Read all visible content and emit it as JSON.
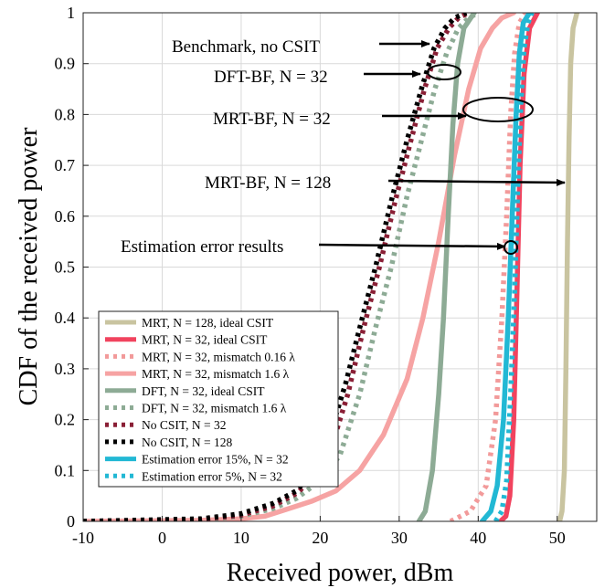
{
  "chart_data": {
    "type": "line",
    "xlabel": "Received power, dBm",
    "ylabel": "CDF of the received power",
    "xlim": [
      -10,
      55
    ],
    "ylim": [
      0,
      1
    ],
    "xticks": [
      "-10",
      "0",
      "10",
      "20",
      "30",
      "40",
      "50"
    ],
    "yticks": [
      "0",
      "0.1",
      "0.2",
      "0.3",
      "0.4",
      "0.5",
      "0.6",
      "0.7",
      "0.8",
      "0.9",
      "1"
    ],
    "grid": true,
    "legend_position": "bottom-left",
    "series": [
      {
        "name": "MRT, N = 128, ideal CSIT",
        "color": "#c9c4a0",
        "style": "solid",
        "points": [
          [
            50.3,
            0
          ],
          [
            50.6,
            0.02
          ],
          [
            50.9,
            0.1
          ],
          [
            51.1,
            0.3
          ],
          [
            51.3,
            0.55
          ],
          [
            51.5,
            0.75
          ],
          [
            51.7,
            0.9
          ],
          [
            52.0,
            0.97
          ],
          [
            52.5,
            1
          ]
        ]
      },
      {
        "name": "MRT, N = 32, ideal CSIT",
        "color": "#f1435e",
        "style": "solid",
        "points": [
          [
            42.8,
            0
          ],
          [
            43.5,
            0.01
          ],
          [
            44.0,
            0.05
          ],
          [
            44.5,
            0.2
          ],
          [
            44.9,
            0.45
          ],
          [
            45.3,
            0.7
          ],
          [
            45.8,
            0.88
          ],
          [
            46.5,
            0.97
          ],
          [
            47.5,
            1
          ]
        ]
      },
      {
        "name": "MRT, N = 32, mismatch 0.16 λ",
        "color": "#f29a9a",
        "style": "dotted",
        "points": [
          [
            36.5,
            0
          ],
          [
            39.0,
            0.02
          ],
          [
            41.0,
            0.07
          ],
          [
            42.2,
            0.2
          ],
          [
            43.0,
            0.4
          ],
          [
            43.6,
            0.6
          ],
          [
            44.1,
            0.8
          ],
          [
            44.6,
            0.92
          ],
          [
            45.2,
            0.98
          ],
          [
            46.0,
            1
          ]
        ]
      },
      {
        "name": "MRT, N = 32, mismatch 1.6 λ",
        "color": "#f6a3a3",
        "style": "solid",
        "points": [
          [
            -10,
            0
          ],
          [
            5,
            0.002
          ],
          [
            10,
            0.005
          ],
          [
            13,
            0.01
          ],
          [
            16,
            0.025
          ],
          [
            19,
            0.04
          ],
          [
            22,
            0.06
          ],
          [
            25,
            0.1
          ],
          [
            28,
            0.17
          ],
          [
            31,
            0.28
          ],
          [
            33,
            0.4
          ],
          [
            35,
            0.55
          ],
          [
            37,
            0.72
          ],
          [
            38.8,
            0.85
          ],
          [
            40.3,
            0.93
          ],
          [
            41.8,
            0.97
          ],
          [
            43,
            0.99
          ],
          [
            44.5,
            1
          ]
        ]
      },
      {
        "name": "DFT, N = 32, ideal CSIT",
        "color": "#8dab95",
        "style": "solid",
        "points": [
          [
            32.5,
            0
          ],
          [
            33.3,
            0.02
          ],
          [
            34.2,
            0.1
          ],
          [
            35.0,
            0.25
          ],
          [
            35.6,
            0.4
          ],
          [
            36.2,
            0.6
          ],
          [
            36.8,
            0.78
          ],
          [
            37.4,
            0.9
          ],
          [
            38.2,
            0.97
          ],
          [
            39.5,
            1
          ]
        ]
      },
      {
        "name": "DFT, N = 32, mismatch 1.6 λ",
        "color": "#8dab95",
        "style": "dotted",
        "points": [
          [
            -10,
            0
          ],
          [
            5,
            0.003
          ],
          [
            10,
            0.01
          ],
          [
            14,
            0.025
          ],
          [
            17,
            0.045
          ],
          [
            20,
            0.08
          ],
          [
            22.5,
            0.13
          ],
          [
            25,
            0.25
          ],
          [
            27,
            0.38
          ],
          [
            29,
            0.5
          ],
          [
            31,
            0.64
          ],
          [
            33,
            0.76
          ],
          [
            34.5,
            0.85
          ],
          [
            36,
            0.92
          ],
          [
            37.5,
            0.97
          ],
          [
            38.8,
            0.99
          ],
          [
            40,
            1
          ]
        ]
      },
      {
        "name": "No CSIT, N = 32",
        "color": "#8a1f35",
        "style": "dotted",
        "points": [
          [
            -10,
            0
          ],
          [
            5,
            0.004
          ],
          [
            10,
            0.012
          ],
          [
            14,
            0.03
          ],
          [
            17,
            0.055
          ],
          [
            19.5,
            0.09
          ],
          [
            21.5,
            0.15
          ],
          [
            23.5,
            0.25
          ],
          [
            25.5,
            0.38
          ],
          [
            27.5,
            0.5
          ],
          [
            29.5,
            0.63
          ],
          [
            31.5,
            0.75
          ],
          [
            33.2,
            0.85
          ],
          [
            34.8,
            0.93
          ],
          [
            36.3,
            0.97
          ],
          [
            37.5,
            0.99
          ],
          [
            38.8,
            1
          ]
        ]
      },
      {
        "name": "No CSIT, N = 128",
        "color": "#000000",
        "style": "dotted",
        "points": [
          [
            -10,
            0
          ],
          [
            5,
            0.005
          ],
          [
            10,
            0.015
          ],
          [
            14,
            0.035
          ],
          [
            17,
            0.06
          ],
          [
            19.2,
            0.1
          ],
          [
            21.2,
            0.17
          ],
          [
            23.2,
            0.27
          ],
          [
            25,
            0.38
          ],
          [
            27,
            0.5
          ],
          [
            29,
            0.63
          ],
          [
            31,
            0.75
          ],
          [
            32.8,
            0.85
          ],
          [
            34.4,
            0.93
          ],
          [
            35.8,
            0.97
          ],
          [
            37,
            0.99
          ],
          [
            38.5,
            1
          ]
        ]
      },
      {
        "name": "Estimation error 15%, N = 32",
        "color": "#22b8d4",
        "style": "solid",
        "points": [
          [
            40.5,
            0
          ],
          [
            41.6,
            0.02
          ],
          [
            42.4,
            0.07
          ],
          [
            43.2,
            0.2
          ],
          [
            43.8,
            0.4
          ],
          [
            44.3,
            0.6
          ],
          [
            44.8,
            0.8
          ],
          [
            45.2,
            0.92
          ],
          [
            45.7,
            0.98
          ],
          [
            46.5,
            1
          ]
        ]
      },
      {
        "name": "Estimation error 5%, N = 32",
        "color": "#22b8d4",
        "style": "dotted",
        "points": [
          [
            42.2,
            0
          ],
          [
            43.0,
            0.02
          ],
          [
            43.6,
            0.08
          ],
          [
            44.1,
            0.25
          ],
          [
            44.6,
            0.45
          ],
          [
            45.0,
            0.65
          ],
          [
            45.4,
            0.82
          ],
          [
            45.8,
            0.93
          ],
          [
            46.3,
            0.98
          ],
          [
            46.8,
            1
          ]
        ]
      }
    ],
    "annotations": [
      {
        "text": "Benchmark, no CSIT"
      },
      {
        "text": "DFT-BF, N = 32"
      },
      {
        "text": "MRT-BF, N = 32"
      },
      {
        "text": "MRT-BF, N = 128"
      },
      {
        "text": "Estimation error results"
      }
    ]
  }
}
